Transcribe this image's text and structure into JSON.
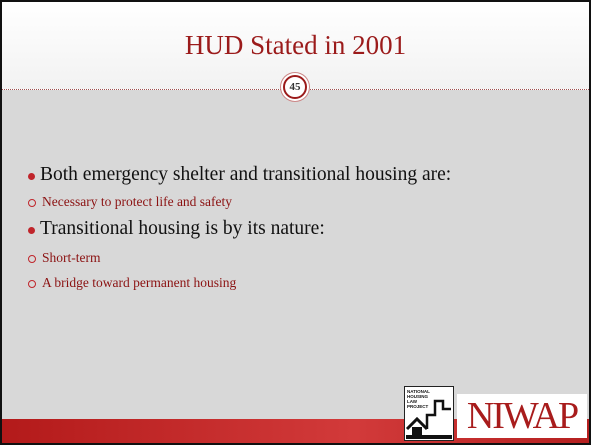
{
  "header": {
    "title": "HUD Stated in 2001",
    "slide_number": "45"
  },
  "bullets": [
    {
      "text": "Both emergency shelter and transitional housing are:",
      "items": [
        "Necessary to protect life and safety"
      ]
    },
    {
      "text": "Transitional housing is by its nature:",
      "items": [
        "Short-term",
        "A bridge toward permanent housing"
      ]
    }
  ],
  "logos": {
    "nhlp": "NATIONAL HOUSING LAW PROJECT",
    "niwap": "NIWAP"
  }
}
